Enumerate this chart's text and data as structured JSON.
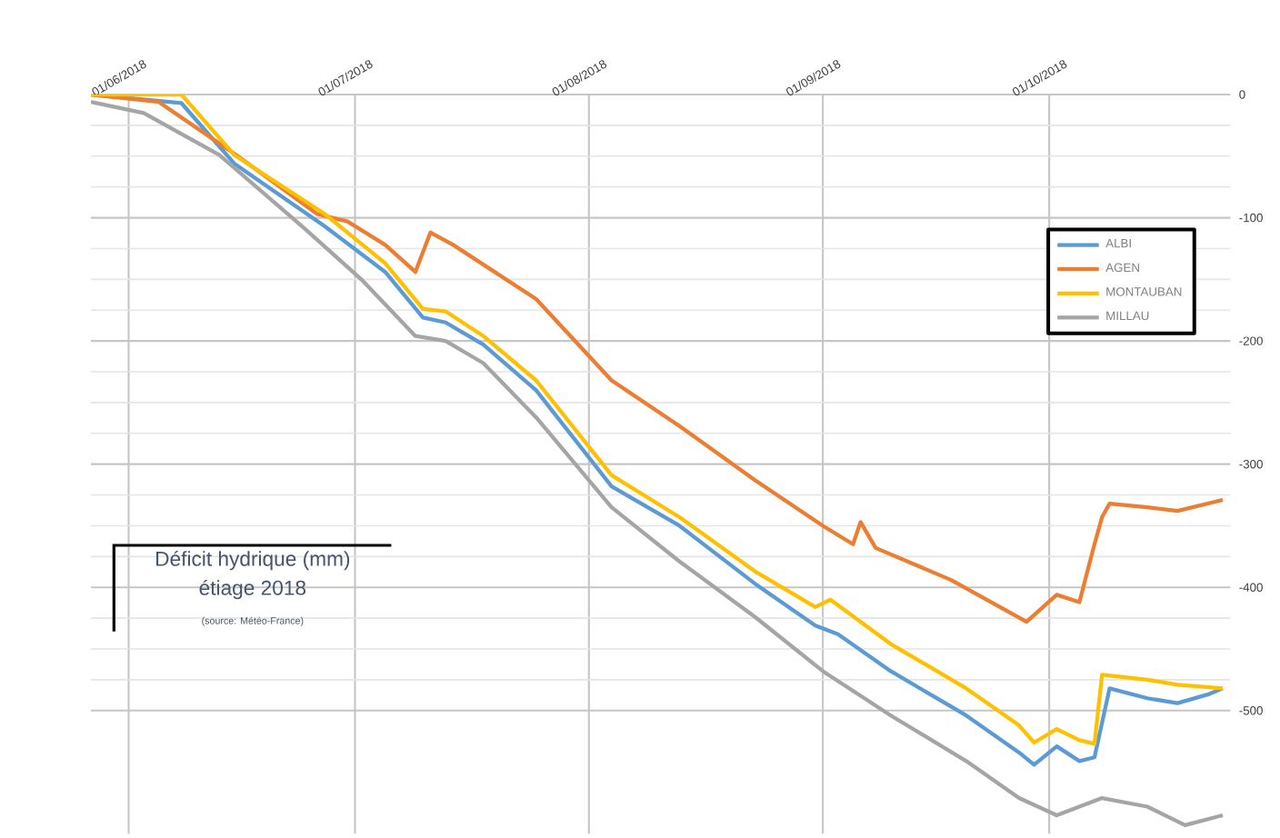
{
  "chart_data": {
    "type": "line",
    "title": "Déficit hydrique (mm)",
    "subtitle": "étiage 2018",
    "annotations": [
      "(source: Météo-France)"
    ],
    "xlim": [
      "2018-05-27",
      "2018-10-25"
    ],
    "xticks": [
      {
        "value": "2018-06-01",
        "label": "01/06/2018"
      },
      {
        "value": "2018-07-01",
        "label": "01/07/2018"
      },
      {
        "value": "2018-08-01",
        "label": "01/08/2018"
      },
      {
        "value": "2018-09-01",
        "label": "01/09/2018"
      },
      {
        "value": "2018-10-01",
        "label": "01/10/2018"
      }
    ],
    "ylim": [
      -600,
      0
    ],
    "yticks": [
      0,
      -100,
      -200,
      -300,
      -400,
      -500
    ],
    "grid": true,
    "legend": "top right",
    "marker": "none",
    "line_style": "solid",
    "series": [
      {
        "name": "ALBI",
        "color": "#5b9bd5",
        "x": [
          "2018-05-27",
          "2018-06-08",
          "2018-06-15",
          "2018-06-27",
          "2018-07-05",
          "2018-07-10",
          "2018-07-13",
          "2018-07-18",
          "2018-07-25",
          "2018-08-04",
          "2018-08-13",
          "2018-08-23",
          "2018-08-31",
          "2018-09-03",
          "2018-09-10",
          "2018-09-20",
          "2018-09-27",
          "2018-09-29",
          "2018-10-02",
          "2018-10-05",
          "2018-10-07",
          "2018-10-09",
          "2018-10-14",
          "2018-10-18",
          "2018-10-22",
          "2018-10-24"
        ],
        "values": [
          0,
          -7,
          -56,
          -107,
          -144,
          -181,
          -185,
          -203,
          -240,
          -318,
          -350,
          -397,
          -431,
          -438,
          -468,
          -504,
          -534,
          -544,
          -529,
          -541,
          -538,
          -482,
          -490,
          -494,
          -487,
          -482
        ]
      },
      {
        "name": "AGEN",
        "color": "#ed7d31",
        "x": [
          "2018-05-27",
          "2018-06-05",
          "2018-06-15",
          "2018-06-26",
          "2018-06-30",
          "2018-07-05",
          "2018-07-09",
          "2018-07-11",
          "2018-07-14",
          "2018-07-25",
          "2018-08-04",
          "2018-08-13",
          "2018-08-23",
          "2018-09-01",
          "2018-09-05",
          "2018-09-06",
          "2018-09-08",
          "2018-09-18",
          "2018-09-28",
          "2018-10-02",
          "2018-10-05",
          "2018-10-07",
          "2018-10-08",
          "2018-10-09",
          "2018-10-14",
          "2018-10-18",
          "2018-10-24"
        ],
        "values": [
          0,
          -6,
          -48,
          -97,
          -103,
          -122,
          -144,
          -112,
          -122,
          -166,
          -232,
          -269,
          -313,
          -350,
          -365,
          -347,
          -368,
          -394,
          -428,
          -406,
          -412,
          -365,
          -343,
          -332,
          -335,
          -338,
          -329
        ]
      },
      {
        "name": "MONTAUBAN",
        "color": "#ffc000",
        "x": [
          "2018-05-27",
          "2018-06-08",
          "2018-06-15",
          "2018-06-27",
          "2018-07-05",
          "2018-07-10",
          "2018-07-13",
          "2018-07-18",
          "2018-07-25",
          "2018-08-04",
          "2018-08-13",
          "2018-08-23",
          "2018-08-31",
          "2018-09-02",
          "2018-09-10",
          "2018-09-20",
          "2018-09-27",
          "2018-09-29",
          "2018-10-02",
          "2018-10-05",
          "2018-10-07",
          "2018-10-08",
          "2018-10-14",
          "2018-10-18",
          "2018-10-24"
        ],
        "values": [
          0,
          0,
          -49,
          -97,
          -137,
          -174,
          -176,
          -196,
          -232,
          -309,
          -343,
          -387,
          -416,
          -410,
          -446,
          -482,
          -512,
          -526,
          -515,
          -524,
          -527,
          -471,
          -475,
          -479,
          -482
        ]
      },
      {
        "name": "MILLAU",
        "color": "#a5a5a5",
        "x": [
          "2018-05-27",
          "2018-06-03",
          "2018-06-13",
          "2018-06-24",
          "2018-07-02",
          "2018-07-09",
          "2018-07-13",
          "2018-07-18",
          "2018-07-25",
          "2018-08-04",
          "2018-08-13",
          "2018-08-23",
          "2018-09-01",
          "2018-09-10",
          "2018-09-20",
          "2018-09-27",
          "2018-10-02",
          "2018-10-05",
          "2018-10-08",
          "2018-10-14",
          "2018-10-19",
          "2018-10-24"
        ],
        "values": [
          -6,
          -15,
          -49,
          -107,
          -151,
          -196,
          -200,
          -218,
          -262,
          -335,
          -379,
          -424,
          -468,
          -504,
          -541,
          -571,
          -585,
          -578,
          -571,
          -578,
          -593,
          -585
        ]
      }
    ]
  }
}
